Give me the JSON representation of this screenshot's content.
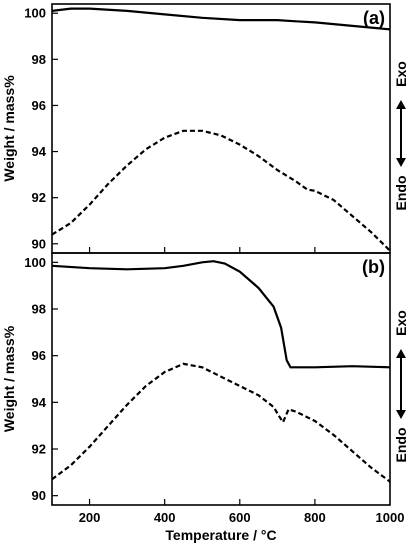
{
  "chart_data": [
    {
      "type": "line",
      "panel_label": "(a)",
      "xlabel": "Temperature / °C",
      "ylabel": "Weight / mass%",
      "xlim": [
        100,
        1000
      ],
      "ylim": [
        89.6,
        100.4
      ],
      "yticks": [
        90,
        92,
        94,
        96,
        98,
        100
      ],
      "right_labels": {
        "top": "Exo",
        "bottom": "Endo"
      },
      "series": [
        {
          "style": "solid",
          "x": [
            100,
            150,
            200,
            300,
            400,
            500,
            600,
            700,
            750,
            800,
            900,
            1000
          ],
          "y": [
            100.1,
            100.2,
            100.2,
            100.1,
            99.95,
            99.8,
            99.7,
            99.7,
            99.65,
            99.6,
            99.45,
            99.3
          ]
        },
        {
          "style": "dashed",
          "x": [
            100,
            150,
            200,
            250,
            300,
            350,
            400,
            450,
            500,
            550,
            600,
            650,
            700,
            750,
            780,
            800,
            850,
            900,
            950,
            1000
          ],
          "y": [
            90.4,
            90.9,
            91.7,
            92.6,
            93.4,
            94.1,
            94.6,
            94.9,
            94.9,
            94.7,
            94.3,
            93.8,
            93.2,
            92.7,
            92.35,
            92.3,
            91.9,
            91.2,
            90.5,
            89.7
          ]
        }
      ]
    },
    {
      "type": "line",
      "panel_label": "(b)",
      "xlabel": "Temperature / °C",
      "ylabel": "Weight / mass%",
      "xlim": [
        100,
        1000
      ],
      "ylim": [
        89.6,
        100.4
      ],
      "xticks": [
        200,
        400,
        600,
        800,
        1000
      ],
      "yticks": [
        90,
        92,
        94,
        96,
        98,
        100
      ],
      "right_labels": {
        "top": "Exo",
        "bottom": "Endo"
      },
      "series": [
        {
          "style": "solid",
          "x": [
            100,
            200,
            300,
            400,
            450,
            500,
            530,
            560,
            600,
            650,
            690,
            710,
            725,
            735,
            750,
            800,
            900,
            1000
          ],
          "y": [
            99.85,
            99.75,
            99.7,
            99.75,
            99.85,
            100.0,
            100.05,
            99.95,
            99.6,
            98.9,
            98.1,
            97.2,
            95.8,
            95.5,
            95.5,
            95.5,
            95.55,
            95.5
          ]
        },
        {
          "style": "dashed",
          "x": [
            100,
            150,
            200,
            250,
            300,
            350,
            400,
            450,
            500,
            550,
            600,
            650,
            690,
            705,
            715,
            730,
            750,
            800,
            850,
            900,
            950,
            1000
          ],
          "y": [
            90.7,
            91.3,
            92.1,
            93.0,
            93.9,
            94.7,
            95.3,
            95.65,
            95.5,
            95.1,
            94.7,
            94.3,
            93.8,
            93.4,
            93.15,
            93.7,
            93.6,
            93.2,
            92.6,
            91.9,
            91.2,
            90.6
          ]
        }
      ]
    }
  ]
}
